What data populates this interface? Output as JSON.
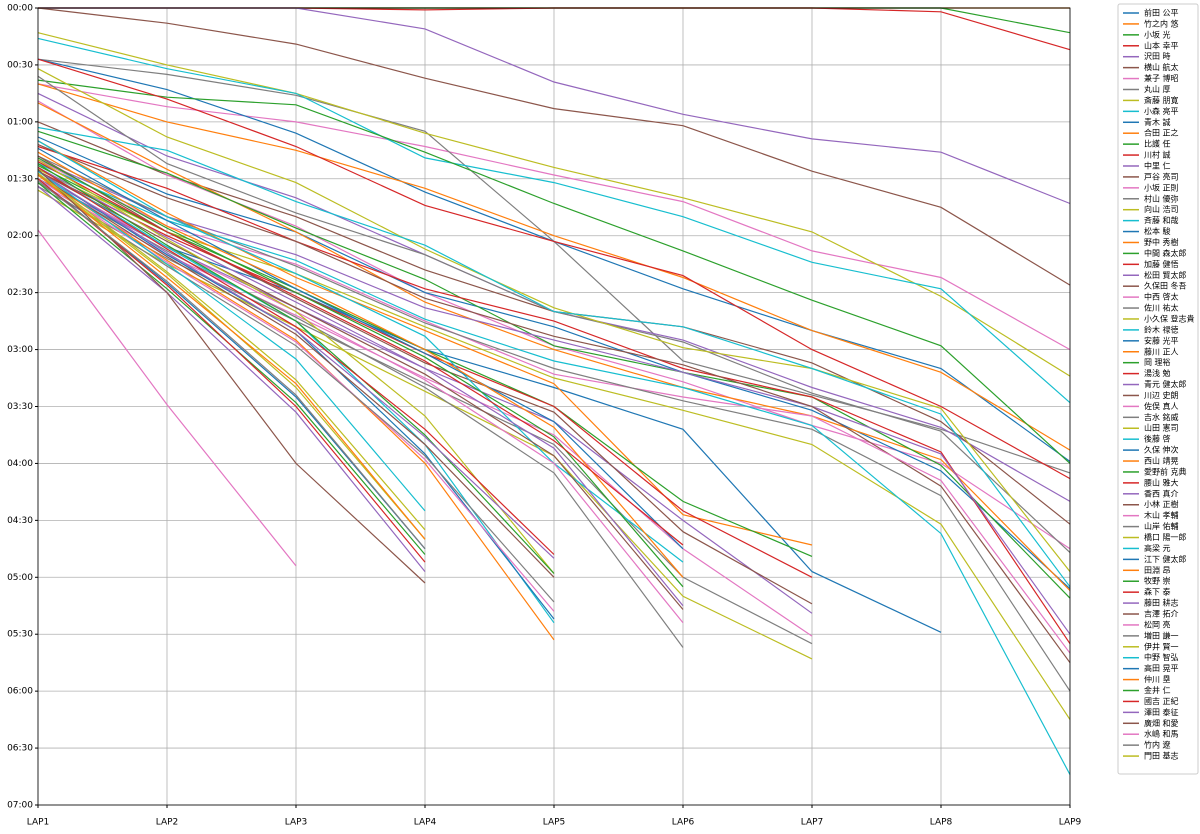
{
  "chart_data": {
    "type": "line",
    "categories": [
      "LAP1",
      "LAP2",
      "LAP3",
      "LAP4",
      "LAP5",
      "LAP6",
      "LAP7",
      "LAP8",
      "LAP9"
    ],
    "ylim": [
      0,
      420
    ],
    "y_inverted": true,
    "grid": true,
    "yticks": [
      {
        "value": 0,
        "label": "00:00"
      },
      {
        "value": 30,
        "label": "00:30"
      },
      {
        "value": 60,
        "label": "01:00"
      },
      {
        "value": 90,
        "label": "01:30"
      },
      {
        "value": 120,
        "label": "02:00"
      },
      {
        "value": 150,
        "label": "02:30"
      },
      {
        "value": 180,
        "label": "03:00"
      },
      {
        "value": 210,
        "label": "03:30"
      },
      {
        "value": 240,
        "label": "04:00"
      },
      {
        "value": 270,
        "label": "04:30"
      },
      {
        "value": 300,
        "label": "05:00"
      },
      {
        "value": 330,
        "label": "05:30"
      },
      {
        "value": 360,
        "label": "06:00"
      },
      {
        "value": 390,
        "label": "06:30"
      },
      {
        "value": 420,
        "label": "07:00"
      }
    ],
    "series": [
      {
        "name": "前田 公平",
        "color": "#1f77b4",
        "values": [
          0,
          0,
          0,
          0,
          0,
          0,
          0,
          0,
          0
        ]
      },
      {
        "name": "竹之内 悠",
        "color": "#ff7f0e",
        "values": [
          0,
          0,
          0,
          0,
          0,
          0,
          0,
          0,
          0
        ]
      },
      {
        "name": "小坂 光",
        "color": "#2ca02c",
        "values": [
          0,
          0,
          0,
          0,
          0,
          0,
          0,
          0,
          13
        ]
      },
      {
        "name": "山本 幸平",
        "color": "#d62728",
        "values": [
          0,
          0,
          0,
          1,
          0,
          0,
          0,
          2,
          22
        ]
      },
      {
        "name": "沢田 時",
        "color": "#9467bd",
        "values": [
          0,
          0,
          0,
          11,
          39,
          56,
          69,
          76,
          103
        ]
      },
      {
        "name": "横山 航太",
        "color": "#8c564b",
        "values": [
          0,
          8,
          19,
          37,
          53,
          62,
          86,
          105,
          146
        ]
      },
      {
        "name": "兼子 博昭",
        "color": "#e377c2",
        "values": [
          40,
          52,
          60,
          73,
          88,
          102,
          128,
          142,
          180
        ]
      },
      {
        "name": "丸山 厚",
        "color": "#7f7f7f",
        "values": [
          27,
          35,
          46,
          65,
          123,
          186,
          204,
          222,
          245
        ]
      },
      {
        "name": "斎藤 朋寛",
        "color": "#bcbd22",
        "values": [
          13,
          30,
          45,
          66,
          84,
          100,
          118,
          152,
          194
        ]
      },
      {
        "name": "小森 亮平",
        "color": "#17becf",
        "values": [
          16,
          32,
          45,
          79,
          92,
          110,
          134,
          148,
          208
        ]
      },
      {
        "name": "青木 誠",
        "color": "#1f77b4",
        "values": [
          27,
          43,
          66,
          97,
          123,
          148,
          170,
          190,
          239
        ]
      },
      {
        "name": "合田 正之",
        "color": "#ff7f0e",
        "values": [
          40,
          60,
          75,
          95,
          120,
          142,
          170,
          192,
          233
        ]
      },
      {
        "name": "比護 任",
        "color": "#2ca02c",
        "values": [
          38,
          47,
          51,
          76,
          103,
          128,
          154,
          178,
          240
        ]
      },
      {
        "name": "川村 誠",
        "color": "#d62728",
        "values": [
          27,
          48,
          73,
          104,
          123,
          141,
          180,
          210,
          248
        ]
      },
      {
        "name": "中里 仁",
        "color": "#9467bd",
        "values": [
          45,
          78,
          100,
          130,
          160,
          175,
          200,
          221,
          260
        ]
      },
      {
        "name": "戸谷 亮司",
        "color": "#8c564b",
        "values": [
          60,
          88,
          110,
          138,
          160,
          168,
          187,
          218,
          272
        ]
      },
      {
        "name": "小坂 正則",
        "color": "#e377c2",
        "values": [
          49,
          88,
          115,
          150,
          178,
          197,
          220,
          240,
          285
        ]
      },
      {
        "name": "村山 優弥",
        "color": "#7f7f7f",
        "values": [
          36,
          82,
          108,
          130,
          160,
          176,
          203,
          223,
          287
        ]
      },
      {
        "name": "向山 浩司",
        "color": "#bcbd22",
        "values": [
          32,
          68,
          92,
          127,
          158,
          179,
          190,
          211,
          297
        ]
      },
      {
        "name": "斉藤 和哉",
        "color": "#17becf",
        "values": [
          63,
          75,
          102,
          125,
          160,
          168,
          190,
          214,
          305
        ]
      },
      {
        "name": "松本 駿",
        "color": "#1f77b4",
        "values": [
          68,
          98,
          118,
          150,
          168,
          192,
          212,
          244,
          306
        ]
      },
      {
        "name": "野中 秀樹",
        "color": "#ff7f0e",
        "values": [
          50,
          85,
          118,
          155,
          180,
          200,
          215,
          238,
          307
        ]
      },
      {
        "name": "中間 森太郎",
        "color": "#2ca02c",
        "values": [
          65,
          87,
          116,
          143,
          178,
          192,
          205,
          241,
          311
        ]
      },
      {
        "name": "加藤 健悟",
        "color": "#d62728",
        "values": [
          73,
          95,
          123,
          148,
          165,
          190,
          205,
          234,
          335
        ]
      },
      {
        "name": "松田 賢太郎",
        "color": "#9467bd",
        "values": [
          80,
          110,
          130,
          158,
          175,
          192,
          210,
          235,
          330
        ]
      },
      {
        "name": "久保田 冬吾",
        "color": "#8c564b",
        "values": [
          72,
          100,
          123,
          153,
          173,
          188,
          210,
          252,
          345
        ]
      },
      {
        "name": "中西 啓太",
        "color": "#e377c2",
        "values": [
          80,
          115,
          135,
          165,
          193,
          205,
          215,
          249,
          340
        ]
      },
      {
        "name": "佐川 祐太",
        "color": "#7f7f7f",
        "values": [
          78,
          110,
          136,
          166,
          190,
          207,
          222,
          257,
          360
        ]
      },
      {
        "name": "小久保 登志貴",
        "color": "#bcbd22",
        "values": [
          85,
          118,
          140,
          168,
          195,
          212,
          230,
          272,
          375
        ]
      },
      {
        "name": "鈴木 禄徳",
        "color": "#17becf",
        "values": [
          82,
          112,
          133,
          164,
          186,
          200,
          220,
          277,
          404
        ]
      },
      {
        "name": "安藤 光平",
        "color": "#1f77b4",
        "values": [
          88,
          126,
          150,
          180,
          200,
          222,
          297,
          329,
          null
        ]
      },
      {
        "name": "藤川 正人",
        "color": "#ff7f0e",
        "values": [
          70,
          108,
          142,
          170,
          198,
          267,
          283,
          null,
          null
        ]
      },
      {
        "name": "岡 理裕",
        "color": "#2ca02c",
        "values": [
          83,
          118,
          148,
          180,
          210,
          260,
          289,
          null,
          null
        ]
      },
      {
        "name": "湯浅 勉",
        "color": "#d62728",
        "values": [
          86,
          120,
          150,
          182,
          210,
          265,
          300,
          null,
          null
        ]
      },
      {
        "name": "青元 健太郎",
        "color": "#9467bd",
        "values": [
          90,
          126,
          158,
          190,
          218,
          270,
          319,
          null,
          null
        ]
      },
      {
        "name": "川辺 史朗",
        "color": "#8c564b",
        "values": [
          78,
          118,
          153,
          187,
          213,
          276,
          314,
          null,
          null
        ]
      },
      {
        "name": "佐俣 真人",
        "color": "#e377c2",
        "values": [
          92,
          130,
          162,
          195,
          225,
          285,
          331,
          null,
          null
        ]
      },
      {
        "name": "吉水 銘威",
        "color": "#7f7f7f",
        "values": [
          94,
          132,
          165,
          198,
          230,
          300,
          335,
          null,
          null
        ]
      },
      {
        "name": "山田 憲司",
        "color": "#bcbd22",
        "values": [
          96,
          135,
          168,
          202,
          236,
          310,
          343,
          null,
          null
        ]
      },
      {
        "name": "後藤 啓",
        "color": "#17becf",
        "values": [
          70,
          110,
          140,
          173,
          240,
          292,
          null,
          null,
          null
        ]
      },
      {
        "name": "久保 伸次",
        "color": "#1f77b4",
        "values": [
          74,
          112,
          148,
          182,
          218,
          285,
          null,
          null,
          null
        ]
      },
      {
        "name": "西山 靖晃",
        "color": "#ff7f0e",
        "values": [
          76,
          115,
          146,
          180,
          221,
          300,
          null,
          null,
          null
        ]
      },
      {
        "name": "愛野前 克典",
        "color": "#2ca02c",
        "values": [
          79,
          116,
          150,
          184,
          226,
          305,
          null,
          null,
          null
        ]
      },
      {
        "name": "腰山 雅大",
        "color": "#d62728",
        "values": [
          81,
          118,
          152,
          186,
          228,
          283,
          null,
          null,
          null
        ]
      },
      {
        "name": "香西 真介",
        "color": "#9467bd",
        "values": [
          84,
          121,
          155,
          190,
          232,
          315,
          null,
          null,
          null
        ]
      },
      {
        "name": "小林 正樹",
        "color": "#8c564b",
        "values": [
          86,
          123,
          158,
          193,
          236,
          317,
          null,
          null,
          null
        ]
      },
      {
        "name": "木山 孝輔",
        "color": "#e377c2",
        "values": [
          88,
          126,
          160,
          196,
          240,
          324,
          null,
          null,
          null
        ]
      },
      {
        "name": "山岸 佑輔",
        "color": "#7f7f7f",
        "values": [
          90,
          128,
          163,
          200,
          245,
          337,
          null,
          null,
          null
        ]
      },
      {
        "name": "橋口 陽一郎",
        "color": "#bcbd22",
        "values": [
          80,
          122,
          160,
          215,
          298,
          null,
          null,
          null,
          null
        ]
      },
      {
        "name": "高梁 元",
        "color": "#17becf",
        "values": [
          84,
          126,
          165,
          230,
          324,
          null,
          null,
          null,
          null
        ]
      },
      {
        "name": "江下 健太郎",
        "color": "#1f77b4",
        "values": [
          86,
          130,
          170,
          235,
          322,
          null,
          null,
          null,
          null
        ]
      },
      {
        "name": "田淵 昂",
        "color": "#ff7f0e",
        "values": [
          88,
          133,
          175,
          240,
          333,
          null,
          null,
          null,
          null
        ]
      },
      {
        "name": "牧野 崇",
        "color": "#2ca02c",
        "values": [
          82,
          125,
          165,
          225,
          298,
          null,
          null,
          null,
          null
        ]
      },
      {
        "name": "森下 泰",
        "color": "#d62728",
        "values": [
          84,
          127,
          168,
          222,
          288,
          null,
          null,
          null,
          null
        ]
      },
      {
        "name": "藤田 耕志",
        "color": "#9467bd",
        "values": [
          86,
          129,
          170,
          226,
          290,
          null,
          null,
          null,
          null
        ]
      },
      {
        "name": "吉澤 拓介",
        "color": "#8c564b",
        "values": [
          88,
          131,
          172,
          230,
          300,
          null,
          null,
          null,
          null
        ]
      },
      {
        "name": "松岡 亮",
        "color": "#e377c2",
        "values": [
          90,
          134,
          176,
          238,
          318,
          null,
          null,
          null,
          null
        ]
      },
      {
        "name": "増田 謙一",
        "color": "#7f7f7f",
        "values": [
          92,
          136,
          178,
          236,
          313,
          null,
          null,
          null,
          null
        ]
      },
      {
        "name": "伊井 賢一",
        "color": "#bcbd22",
        "values": [
          88,
          140,
          200,
          280,
          null,
          null,
          null,
          null,
          null
        ]
      },
      {
        "name": "中野 智弘",
        "color": "#17becf",
        "values": [
          86,
          135,
          185,
          265,
          null,
          null,
          null,
          null,
          null
        ]
      },
      {
        "name": "高田 晃平",
        "color": "#1f77b4",
        "values": [
          90,
          145,
          205,
          285,
          null,
          null,
          null,
          null,
          null
        ]
      },
      {
        "name": "仲川 塁",
        "color": "#ff7f0e",
        "values": [
          88,
          142,
          198,
          280,
          null,
          null,
          null,
          null,
          null
        ]
      },
      {
        "name": "金井 仁",
        "color": "#2ca02c",
        "values": [
          92,
          148,
          208,
          288,
          null,
          null,
          null,
          null,
          null
        ]
      },
      {
        "name": "國吉 正紀",
        "color": "#d62728",
        "values": [
          90,
          146,
          210,
          292,
          null,
          null,
          null,
          null,
          null
        ]
      },
      {
        "name": "澤田 泰征",
        "color": "#9467bd",
        "values": [
          94,
          150,
          213,
          297,
          null,
          null,
          null,
          null,
          null
        ]
      },
      {
        "name": "廣畑 和愛",
        "color": "#8c564b",
        "values": [
          85,
          150,
          240,
          303,
          null,
          null,
          null,
          null,
          null
        ]
      },
      {
        "name": "水嶋 和馬",
        "color": "#e377c2",
        "values": [
          117,
          209,
          294,
          null,
          null,
          null,
          null,
          null,
          null
        ]
      },
      {
        "name": "竹内 遼",
        "color": "#7f7f7f",
        "values": [
          91,
          144,
          204,
          285,
          null,
          null,
          null,
          null,
          null
        ]
      },
      {
        "name": "門田 基志",
        "color": "#bcbd22",
        "values": [
          87,
          139,
          196,
          275,
          null,
          null,
          null,
          null,
          null
        ]
      }
    ]
  }
}
